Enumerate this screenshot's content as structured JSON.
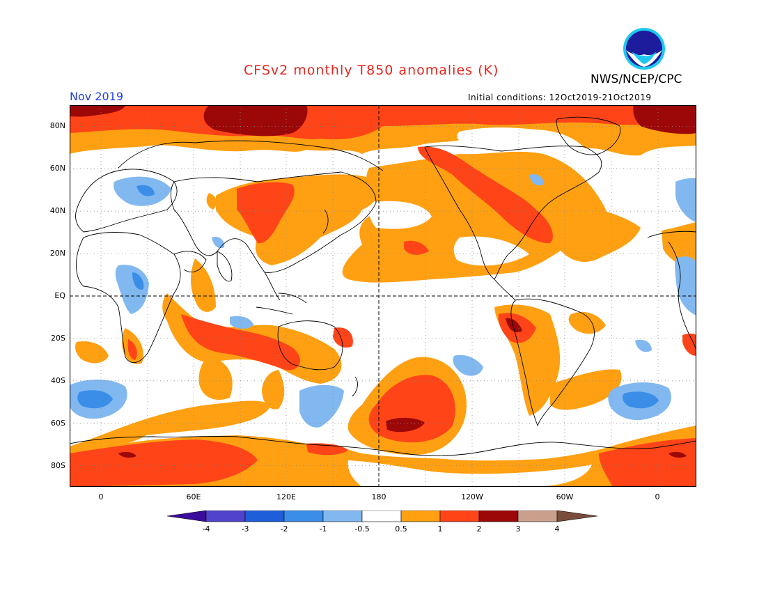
{
  "header": {
    "title": "CFSv2 monthly T850 anomalies (K)",
    "agency": "NWS/NCEP/CPC",
    "logo_text": "NOAA",
    "period": "Nov 2019",
    "initial_conditions": "Initial conditions: 12Oct2019-21Oct2019"
  },
  "map": {
    "variable": "T850 anomaly",
    "units": "K",
    "projection": "cylindrical equidistant",
    "center_longitude": "180",
    "lat_labels": [
      "80N",
      "60N",
      "40N",
      "20N",
      "EQ",
      "20S",
      "40S",
      "60S",
      "80S"
    ],
    "lon_labels": [
      "0",
      "60E",
      "120E",
      "180",
      "120W",
      "60W",
      "0"
    ],
    "reference_lines": [
      "EQ",
      "180"
    ],
    "grid": "dotted",
    "notable_regions": [
      {
        "region": "Arctic north of Eurasia",
        "anomaly_range": "2 to 3+"
      },
      {
        "region": "Northeast Pacific / Western Canada",
        "anomaly_range": "1 to 2"
      },
      {
        "region": "South Pacific near 60S 165W",
        "anomaly_range": "2 to 3+"
      },
      {
        "region": "Antarctic coast",
        "anomaly_range": "1 to 2"
      },
      {
        "region": "Southern Indian Ocean / Australia",
        "anomaly_range": "1 to 2"
      },
      {
        "region": "Eastern Equatorial Africa",
        "anomaly_range": "-0.5 to -1"
      },
      {
        "region": "South Atlantic near 50S",
        "anomaly_range": "-1 to -2"
      }
    ]
  },
  "colorbar": {
    "labels": [
      "-4",
      "-3",
      "-2",
      "-1",
      "-0.5",
      "0.5",
      "1",
      "2",
      "3",
      "4"
    ],
    "colors": [
      "#3c0c9c",
      "#5044cc",
      "#1e5ed8",
      "#3a8ee8",
      "#82b8f0",
      "#ffffff",
      "#ffa012",
      "#ff4418",
      "#9c0808",
      "#caa08c",
      "#7a4c3c"
    ]
  }
}
